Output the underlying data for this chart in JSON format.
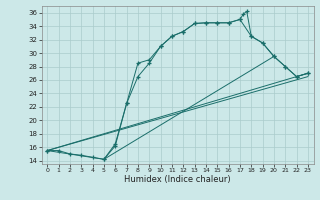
{
  "xlabel": "Humidex (Indice chaleur)",
  "bg_color": "#cce8e8",
  "line_color": "#1a6e6a",
  "grid_color": "#aacccc",
  "xlim": [
    -0.5,
    23.5
  ],
  "ylim": [
    13.5,
    37.0
  ],
  "xticks": [
    0,
    1,
    2,
    3,
    4,
    5,
    6,
    7,
    8,
    9,
    10,
    11,
    12,
    13,
    14,
    15,
    16,
    17,
    18,
    19,
    20,
    21,
    22,
    23
  ],
  "yticks": [
    14,
    16,
    18,
    20,
    22,
    24,
    26,
    28,
    30,
    32,
    34,
    36
  ],
  "line1_x": [
    0,
    1,
    2,
    3,
    4,
    5,
    6,
    7,
    8,
    9,
    10,
    11,
    12,
    13,
    14,
    15,
    16,
    17,
    17.3,
    17.6,
    18,
    19,
    20,
    21,
    22,
    23
  ],
  "line1_y": [
    15.5,
    15.5,
    15.0,
    14.8,
    14.5,
    14.2,
    16.2,
    22.5,
    26.5,
    28.5,
    31.0,
    32.5,
    33.2,
    34.4,
    34.5,
    34.5,
    34.5,
    35.0,
    35.8,
    36.2,
    32.5,
    31.5,
    29.5,
    28.0,
    26.5,
    27.0
  ],
  "line2_x": [
    0,
    5,
    6,
    7,
    8,
    9,
    10,
    11,
    12,
    13,
    14,
    15,
    16,
    17,
    18,
    19,
    20,
    21,
    22,
    23
  ],
  "line2_y": [
    15.5,
    14.2,
    16.5,
    22.5,
    28.5,
    29.0,
    31.0,
    32.5,
    33.2,
    34.4,
    34.5,
    34.5,
    34.5,
    35.0,
    32.5,
    31.5,
    29.5,
    28.0,
    26.5,
    27.0
  ],
  "line3_x": [
    0,
    23
  ],
  "line3_y": [
    15.5,
    27.0
  ],
  "line4_x": [
    0,
    23
  ],
  "line4_y": [
    15.5,
    26.5
  ],
  "line5_x": [
    5,
    20
  ],
  "line5_y": [
    14.2,
    29.5
  ]
}
